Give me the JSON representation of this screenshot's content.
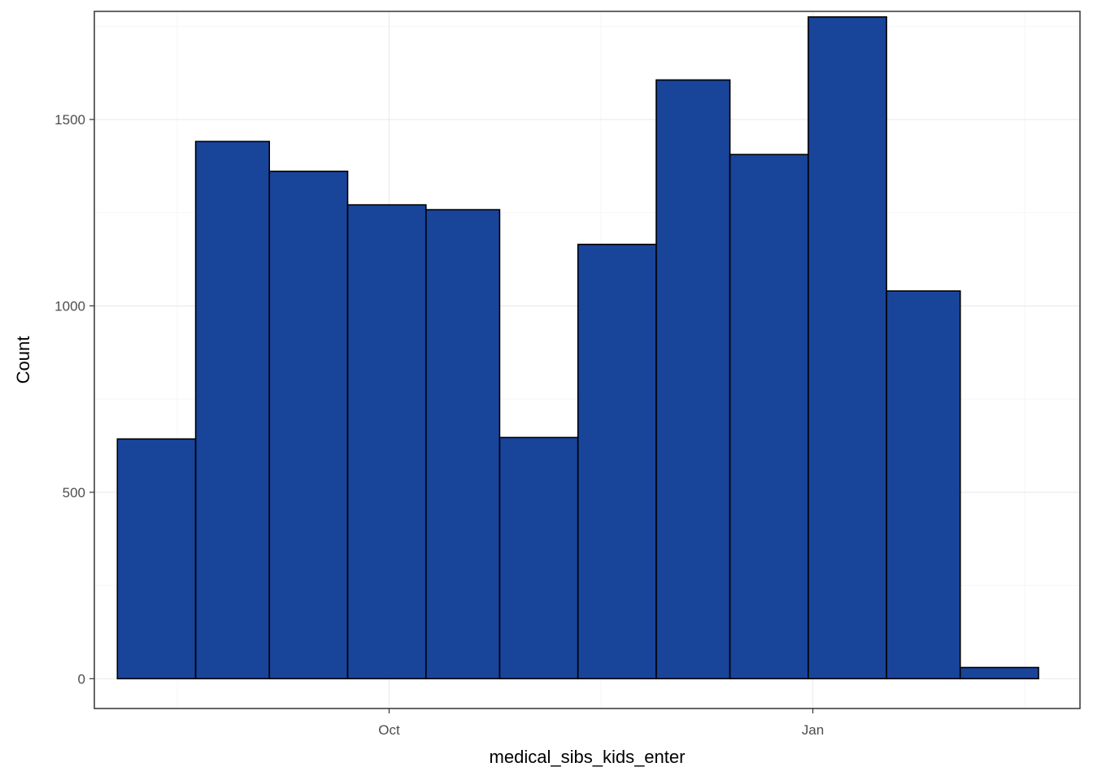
{
  "chart_data": {
    "type": "bar",
    "title": "",
    "xlabel": "medical_sibs_kids_enter",
    "ylabel": "Count",
    "x_axis": {
      "kind": "date",
      "range": [
        "2019-07-29",
        "2020-02-28"
      ],
      "ticks": [
        {
          "date": "2019-10-01",
          "label": "Oct"
        },
        {
          "date": "2020-01-01",
          "label": "Jan"
        }
      ]
    },
    "y_axis": {
      "range": [
        -80,
        1790
      ],
      "ticks": [
        0,
        500,
        1000,
        1500
      ],
      "tick_labels": [
        "0",
        "500",
        "1000",
        "1500"
      ]
    },
    "bins": [
      {
        "start": "2019-08-03",
        "end": "2019-08-20",
        "count": 643
      },
      {
        "start": "2019-08-20",
        "end": "2019-09-05",
        "count": 1441
      },
      {
        "start": "2019-09-05",
        "end": "2019-09-22",
        "count": 1361
      },
      {
        "start": "2019-09-22",
        "end": "2019-10-09",
        "count": 1271
      },
      {
        "start": "2019-10-09",
        "end": "2019-10-25",
        "count": 1258
      },
      {
        "start": "2019-10-25",
        "end": "2019-11-11",
        "count": 647
      },
      {
        "start": "2019-11-11",
        "end": "2019-11-28",
        "count": 1165
      },
      {
        "start": "2019-11-28",
        "end": "2019-12-14",
        "count": 1606
      },
      {
        "start": "2019-12-14",
        "end": "2019-12-31",
        "count": 1406
      },
      {
        "start": "2019-12-31",
        "end": "2020-01-17",
        "count": 1775
      },
      {
        "start": "2020-01-17",
        "end": "2020-02-02",
        "count": 1040
      },
      {
        "start": "2020-02-02",
        "end": "2020-02-19",
        "count": 30
      }
    ],
    "grid": true,
    "colors": {
      "bar_fill": "#18449A",
      "bar_stroke": "#000000",
      "panel_border": "#333333",
      "grid": "#ebebeb"
    }
  }
}
